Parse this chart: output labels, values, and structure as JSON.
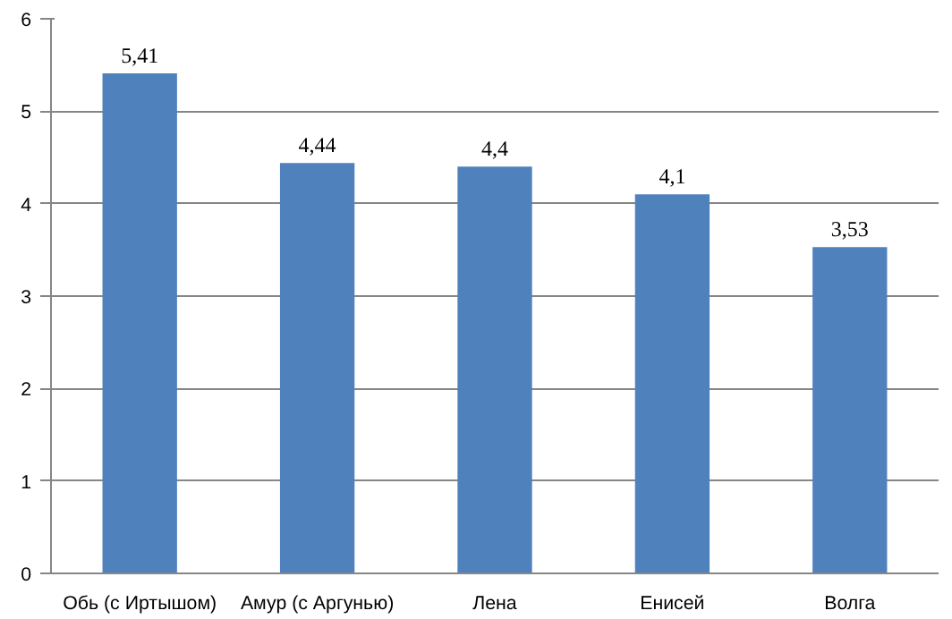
{
  "chart_data": {
    "type": "bar",
    "categories": [
      "Обь (с Иртышом)",
      "Амур (с Аргунью)",
      "Лена",
      "Енисей",
      "Волга"
    ],
    "values": [
      5.41,
      4.44,
      4.4,
      4.1,
      3.53
    ],
    "value_labels": [
      "5,41",
      "4,44",
      "4,4",
      "4,1",
      "3,53"
    ],
    "color": "#4f81bd",
    "ylim": [
      0,
      6
    ],
    "yticks": [
      0,
      1,
      2,
      3,
      4,
      5,
      6
    ],
    "grid": "y"
  }
}
